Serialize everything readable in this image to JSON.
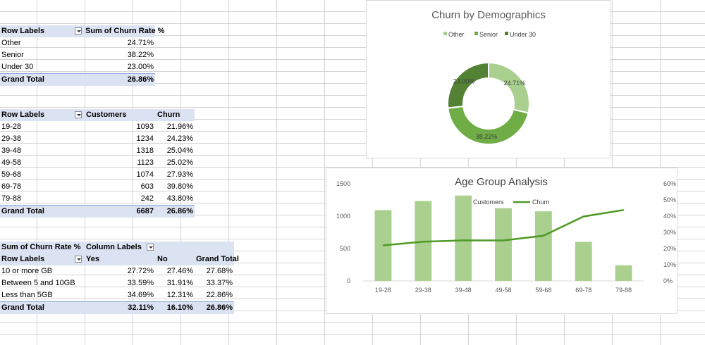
{
  "pivot1": {
    "headers": [
      "Row Labels",
      "Sum of Churn Rate %"
    ],
    "rows": [
      {
        "label": "Other",
        "value": "24.71%"
      },
      {
        "label": "Senior",
        "value": "38.22%"
      },
      {
        "label": "Under 30",
        "value": "23.00%"
      }
    ],
    "total": {
      "label": "Grand Total",
      "value": "26.86%"
    }
  },
  "pivot2": {
    "headers": [
      "Row Labels",
      "Customers",
      "Churn"
    ],
    "rows": [
      {
        "label": "19-28",
        "customers": "1093",
        "churn": "21.96%"
      },
      {
        "label": "29-38",
        "customers": "1234",
        "churn": "24.23%"
      },
      {
        "label": "39-48",
        "customers": "1318",
        "churn": "25.04%"
      },
      {
        "label": "49-58",
        "customers": "1123",
        "churn": "25.02%"
      },
      {
        "label": "59-68",
        "customers": "1074",
        "churn": "27.93%"
      },
      {
        "label": "69-78",
        "customers": "603",
        "churn": "39.80%"
      },
      {
        "label": "79-88",
        "customers": "242",
        "churn": "43.80%"
      }
    ],
    "total": {
      "label": "Grand Total",
      "customers": "6687",
      "churn": "26.86%"
    }
  },
  "pivot3": {
    "corner": "Sum of Churn Rate %",
    "column_labels": "Column Labels",
    "row_labels": "Row Labels",
    "col_yes": "Yes",
    "col_no": "No",
    "col_total": "Grand Total",
    "rows": [
      {
        "label": "10 or more GB",
        "yes": "27.72%",
        "no": "27.46%",
        "total": "27.68%"
      },
      {
        "label": "Between 5 and 10GB",
        "yes": "33.59%",
        "no": "31.91%",
        "total": "33.37%"
      },
      {
        "label": "Less than 5GB",
        "yes": "34.69%",
        "no": "12.31%",
        "total": "22.86%"
      }
    ],
    "grand": {
      "label": "Grand Total",
      "yes": "32.11%",
      "no": "16.10%",
      "total": "26.86%"
    }
  },
  "colors": {
    "other": "#a9d08e",
    "senior": "#70ad47",
    "under30": "#548235",
    "bars": "#a9d08e",
    "line": "#4e9a25",
    "pivot_header": "#dbe2f2"
  },
  "chart_data": [
    {
      "type": "pie",
      "title": "Churn by Demographics",
      "donut": true,
      "legend_position": "top",
      "categories": [
        "Other",
        "Senior",
        "Under 30"
      ],
      "values": [
        24.71,
        38.22,
        23.0
      ],
      "labels": [
        "24.71%",
        "38.22%",
        "23.00%"
      ]
    },
    {
      "type": "bar",
      "title": "Age Group Analysis",
      "legend_position": "top",
      "categories": [
        "19-28",
        "29-38",
        "39-48",
        "49-58",
        "59-68",
        "69-78",
        "79-88"
      ],
      "series": [
        {
          "name": "Customers",
          "type": "bar",
          "axis": "left",
          "values": [
            1093,
            1234,
            1318,
            1123,
            1074,
            603,
            242
          ]
        },
        {
          "name": "Churn",
          "type": "line",
          "axis": "right",
          "values": [
            21.96,
            24.23,
            25.04,
            25.02,
            27.93,
            39.8,
            43.8
          ]
        }
      ],
      "ylim": [
        0,
        1500
      ],
      "yticks": [
        "0",
        "500",
        "1000",
        "1500"
      ],
      "y2lim": [
        0,
        60
      ],
      "y2ticks": [
        "0%",
        "10%",
        "20%",
        "30%",
        "40%",
        "50%",
        "60%"
      ],
      "grid": false
    }
  ]
}
